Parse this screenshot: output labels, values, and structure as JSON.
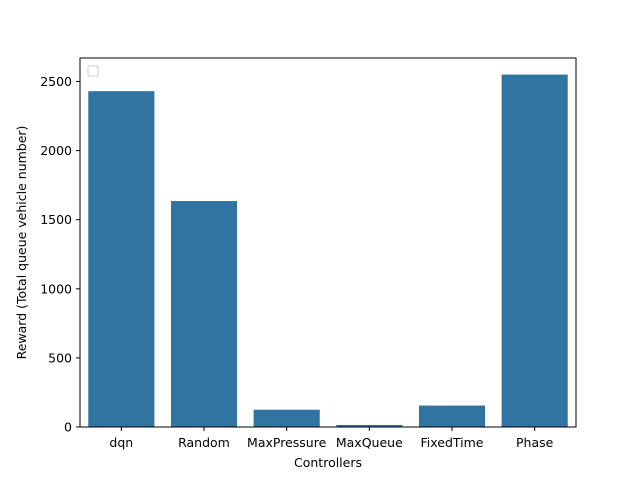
{
  "chart_data": {
    "type": "bar",
    "categories": [
      "dqn",
      "Random",
      "MaxPressure",
      "MaxQueue",
      "FixedTime",
      "Phase"
    ],
    "values": [
      2430,
      1635,
      125,
      15,
      155,
      2550
    ],
    "xlabel": "Controllers",
    "ylabel": "Reward (Total queue vehicle number)",
    "ylim": [
      0,
      2670
    ],
    "yticks": [
      0,
      500,
      1000,
      1500,
      2000,
      2500
    ],
    "bar_color": "#3274a1",
    "grid": false,
    "legend": {
      "placement": "top-left",
      "entries": []
    }
  }
}
